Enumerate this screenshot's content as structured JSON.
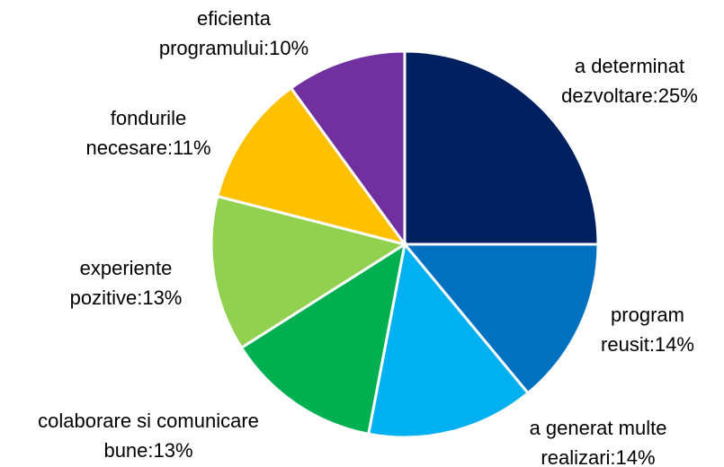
{
  "chart_data": {
    "type": "pie",
    "values": [
      25,
      14,
      14,
      13,
      13,
      11,
      10
    ],
    "value_labels": [
      [
        "a determinat",
        "dezvoltare:25%"
      ],
      [
        "program",
        "reusit:14%"
      ],
      [
        "a generat multe",
        "realizari:14%"
      ],
      [
        "colaborare si comunicare",
        "bune:13%"
      ],
      [
        "experiente",
        "pozitive:13%"
      ],
      [
        "fondurile",
        "necesare:11%"
      ],
      [
        "eficienta",
        "programului:10%"
      ]
    ],
    "colors": [
      "#002060",
      "#0070c0",
      "#00b0f0",
      "#00b050",
      "#92d050",
      "#ffc000",
      "#7030a0"
    ]
  }
}
